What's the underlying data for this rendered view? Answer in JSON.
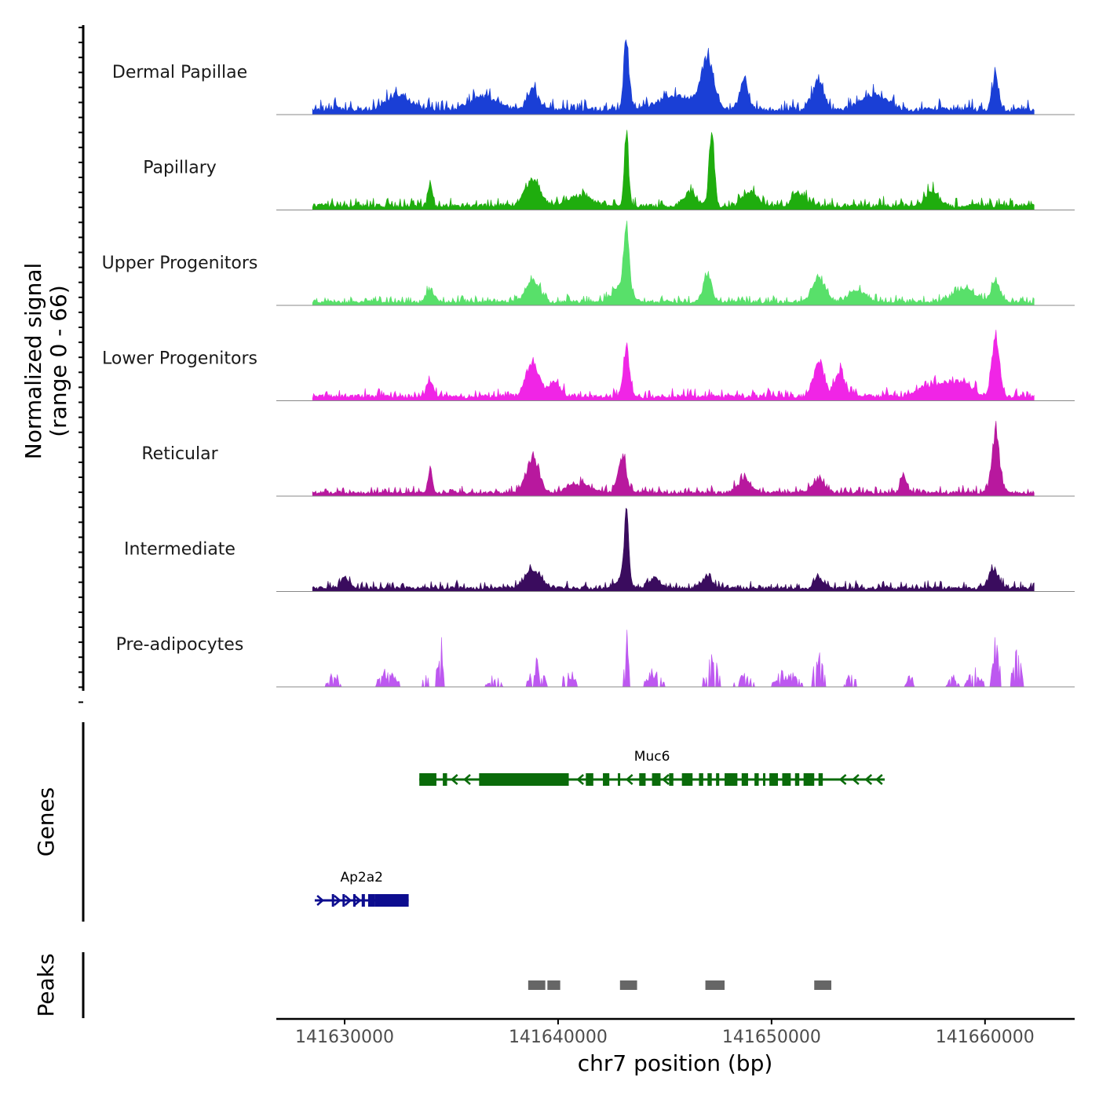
{
  "chart_data": {
    "type": "area",
    "title": "",
    "ylabel": "Normalized signal",
    "ylabel_range": "(range 0 - 66)",
    "y_range": [
      0,
      66
    ],
    "xlabel": "chr7 position (bp)",
    "x_range": [
      141626800,
      141664200
    ],
    "x_ticks": [
      141630000,
      141640000,
      141650000,
      141660000
    ],
    "data_range": [
      141628500,
      141662300
    ],
    "series": [
      {
        "name": "Dermal Papillae",
        "color": "#1a3fd6",
        "baseline": 6,
        "noise": 8,
        "peaks": [
          [
            141643200,
            60,
            120
          ],
          [
            141647000,
            44,
            300
          ],
          [
            141638800,
            18,
            250
          ],
          [
            141648700,
            24,
            200
          ],
          [
            141652200,
            26,
            250
          ],
          [
            141660500,
            30,
            150
          ],
          [
            141654800,
            14,
            600
          ],
          [
            141632500,
            14,
            500
          ],
          [
            141645500,
            12,
            800
          ],
          [
            141636500,
            12,
            600
          ]
        ]
      },
      {
        "name": "Papillary",
        "color": "#1fad0e",
        "baseline": 5,
        "noise": 6,
        "peaks": [
          [
            141643200,
            66,
            100
          ],
          [
            141647200,
            66,
            120
          ],
          [
            141638800,
            24,
            350
          ],
          [
            141634000,
            20,
            100
          ],
          [
            141646200,
            12,
            300
          ],
          [
            141649000,
            14,
            300
          ],
          [
            141651300,
            12,
            300
          ],
          [
            141657500,
            12,
            300
          ],
          [
            141641000,
            8,
            600
          ]
        ]
      },
      {
        "name": "Upper Progenitors",
        "color": "#58e06a",
        "baseline": 4,
        "noise": 5,
        "peaks": [
          [
            141643200,
            58,
            120
          ],
          [
            141643000,
            14,
            400
          ],
          [
            141638800,
            20,
            300
          ],
          [
            141647000,
            24,
            200
          ],
          [
            141652200,
            22,
            300
          ],
          [
            141654000,
            10,
            400
          ],
          [
            141660500,
            20,
            200
          ],
          [
            141659000,
            12,
            500
          ],
          [
            141634000,
            10,
            200
          ]
        ]
      },
      {
        "name": "Lower Progenitors",
        "color": "#f025e6",
        "baseline": 5,
        "noise": 6,
        "peaks": [
          [
            141643200,
            40,
            150
          ],
          [
            141638800,
            30,
            300
          ],
          [
            141660500,
            48,
            180
          ],
          [
            141652200,
            30,
            250
          ],
          [
            141653200,
            20,
            250
          ],
          [
            141634000,
            14,
            150
          ],
          [
            141639800,
            12,
            300
          ],
          [
            141657500,
            10,
            600
          ],
          [
            141658800,
            12,
            600
          ]
        ]
      },
      {
        "name": "Reticular",
        "color": "#b8189e",
        "baseline": 4,
        "noise": 5,
        "peaks": [
          [
            141643000,
            32,
            200
          ],
          [
            141638800,
            30,
            300
          ],
          [
            141660500,
            52,
            180
          ],
          [
            141634000,
            22,
            100
          ],
          [
            141648700,
            12,
            300
          ],
          [
            141652200,
            12,
            300
          ],
          [
            141656200,
            16,
            150
          ],
          [
            141641000,
            8,
            500
          ]
        ]
      },
      {
        "name": "Intermediate",
        "color": "#3a0c5e",
        "baseline": 4,
        "noise": 5,
        "peaks": [
          [
            141643200,
            66,
            100
          ],
          [
            141643000,
            10,
            300
          ],
          [
            141638800,
            16,
            350
          ],
          [
            141660400,
            14,
            250
          ],
          [
            141647000,
            10,
            250
          ],
          [
            141652200,
            10,
            200
          ],
          [
            141630000,
            8,
            200
          ],
          [
            141644500,
            8,
            300
          ]
        ]
      },
      {
        "name": "Pre-adipocytes",
        "color": "#bd58f0",
        "baseline": 0,
        "noise": 0,
        "spiky": true,
        "peaks": [
          [
            141643200,
            52,
            100
          ],
          [
            141660500,
            42,
            150
          ],
          [
            141661500,
            35,
            180
          ],
          [
            141634500,
            42,
            150
          ],
          [
            141652200,
            32,
            200
          ],
          [
            141647200,
            30,
            250
          ],
          [
            141633800,
            26,
            120
          ],
          [
            141639000,
            24,
            300
          ],
          [
            141640500,
            16,
            250
          ],
          [
            141644500,
            16,
            300
          ],
          [
            141632000,
            16,
            350
          ],
          [
            141629500,
            12,
            250
          ],
          [
            141659500,
            16,
            300
          ],
          [
            141648700,
            12,
            300
          ],
          [
            141650500,
            14,
            300
          ],
          [
            141651000,
            12,
            300
          ],
          [
            141653700,
            14,
            200
          ],
          [
            141637000,
            10,
            250
          ],
          [
            141656500,
            10,
            150
          ],
          [
            141658500,
            10,
            200
          ]
        ]
      }
    ],
    "genes_panel_label": "Genes",
    "genes": [
      {
        "name": "Ap2a2",
        "color": "#0d0d8f",
        "strand": "+",
        "start": 141628600,
        "end": 141633000,
        "exons": [
          [
            141629400,
            141629500
          ],
          [
            141629900,
            141630000
          ],
          [
            141630400,
            141630500
          ],
          [
            141630800,
            141630950
          ],
          [
            141631100,
            141631400
          ],
          [
            141631400,
            141633000
          ]
        ],
        "arrows": [
          141628900,
          141629700,
          141630200,
          141630650,
          141631650
        ]
      },
      {
        "name": "Muc6",
        "color": "#0a6b0a",
        "strand": "-",
        "start": 141633500,
        "end": 141655300,
        "exons": [
          [
            141633500,
            141634300
          ],
          [
            141634600,
            141634800
          ],
          [
            141636300,
            141640500
          ],
          [
            141641300,
            141641650
          ],
          [
            141642100,
            141642400
          ],
          [
            141642800,
            141642900
          ],
          [
            141643800,
            141644100
          ],
          [
            141644400,
            141644800
          ],
          [
            141645200,
            141645400
          ],
          [
            141645800,
            141646300
          ],
          [
            141646600,
            141646800
          ],
          [
            141647000,
            141647200
          ],
          [
            141647400,
            141647550
          ],
          [
            141647800,
            141648400
          ],
          [
            141648600,
            141648900
          ],
          [
            141649200,
            141649400
          ],
          [
            141649600,
            141649700
          ],
          [
            141649900,
            141650300
          ],
          [
            141650500,
            141650900
          ],
          [
            141651100,
            141651300
          ],
          [
            141651500,
            141652000
          ],
          [
            141652200,
            141652400
          ]
        ],
        "arrows": [
          141635100,
          141635700,
          141641000,
          141643300,
          141645000,
          141653300,
          141653900,
          141654500,
          141655000
        ]
      }
    ],
    "peaks_panel_label": "Peaks",
    "peaks": [
      [
        141638600,
        141639400
      ],
      [
        141639500,
        141640100
      ],
      [
        141642900,
        141643700
      ],
      [
        141646900,
        141647800
      ],
      [
        141652000,
        141652800
      ]
    ]
  }
}
